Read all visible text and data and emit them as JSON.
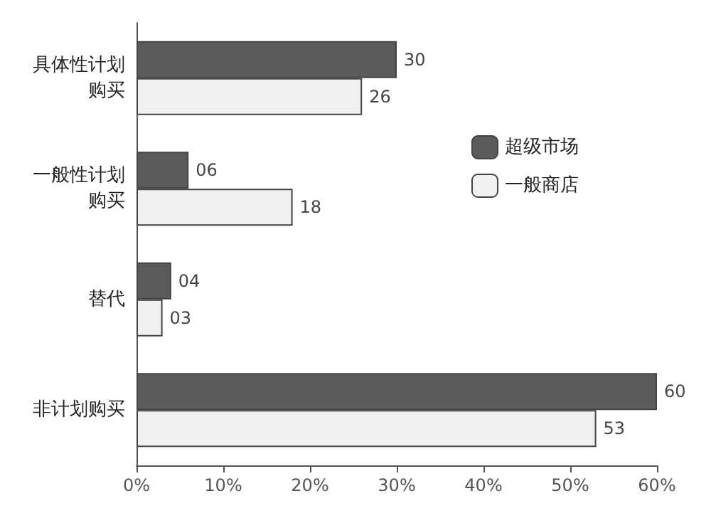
{
  "chart_data": {
    "type": "bar",
    "orientation": "horizontal",
    "categories": [
      "具体性计划购买",
      "一般性计划购买",
      "替代",
      "非计划购买"
    ],
    "series": [
      {
        "name": "超级市场",
        "color": "#5b5b5b",
        "values": [
          30,
          6,
          4,
          60
        ],
        "value_labels": [
          "30",
          "06",
          "04",
          "60"
        ]
      },
      {
        "name": "一般商店",
        "color": "#f0f0f0",
        "values": [
          26,
          18,
          3,
          53
        ],
        "value_labels": [
          "26",
          "18",
          "03",
          "53"
        ]
      }
    ],
    "xlim": [
      0,
      60
    ],
    "xticks": [
      {
        "value": 0,
        "label": "0%"
      },
      {
        "value": 10,
        "label": "10%"
      },
      {
        "value": 20,
        "label": "20%"
      },
      {
        "value": 30,
        "label": "30%"
      },
      {
        "value": 40,
        "label": "40%"
      },
      {
        "value": 50,
        "label": "50%"
      },
      {
        "value": 60,
        "label": "60%"
      }
    ],
    "grid": false,
    "legend": "right"
  }
}
